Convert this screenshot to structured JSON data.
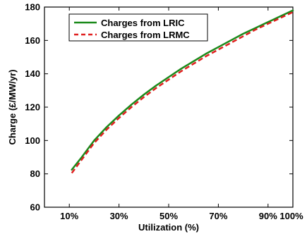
{
  "chart_data": {
    "type": "line",
    "xlabel": "Utilization (%)",
    "ylabel": "Charge (£/MW/yr)",
    "xlim": [
      0,
      100
    ],
    "ylim": [
      60,
      180
    ],
    "x_ticks": [
      10,
      30,
      50,
      70,
      90,
      100
    ],
    "x_tick_labels": [
      "10%",
      "30%",
      "50%",
      "70%",
      "90%",
      "100%"
    ],
    "y_ticks": [
      60,
      80,
      100,
      120,
      140,
      160,
      180
    ],
    "y_tick_labels": [
      "60",
      "80",
      "100",
      "120",
      "140",
      "160",
      "180"
    ],
    "grid": false,
    "legend_position": "top-left",
    "series": [
      {
        "name": "Charges from LRIC",
        "color": "#1a8a1a",
        "dash": "solid",
        "x": [
          11,
          15,
          20,
          25,
          30,
          35,
          40,
          45,
          50,
          55,
          60,
          65,
          70,
          75,
          80,
          85,
          90,
          95,
          100
        ],
        "y": [
          82.5,
          90,
          100,
          108,
          115,
          121.5,
          127.5,
          133,
          138,
          143,
          147.5,
          152,
          156,
          160,
          164,
          167.5,
          171,
          174.5,
          178
        ]
      },
      {
        "name": "Charges from LRMC",
        "color": "#e02020",
        "dash": "dashed",
        "x": [
          11,
          15,
          20,
          25,
          30,
          35,
          40,
          45,
          50,
          55,
          60,
          65,
          70,
          75,
          80,
          85,
          90,
          95,
          100
        ],
        "y": [
          80.5,
          88.5,
          98.5,
          106.5,
          113.5,
          120,
          126,
          131.5,
          136.5,
          141.5,
          146,
          150.5,
          154.5,
          158.5,
          162.5,
          166.5,
          170,
          173.5,
          177
        ]
      }
    ]
  }
}
